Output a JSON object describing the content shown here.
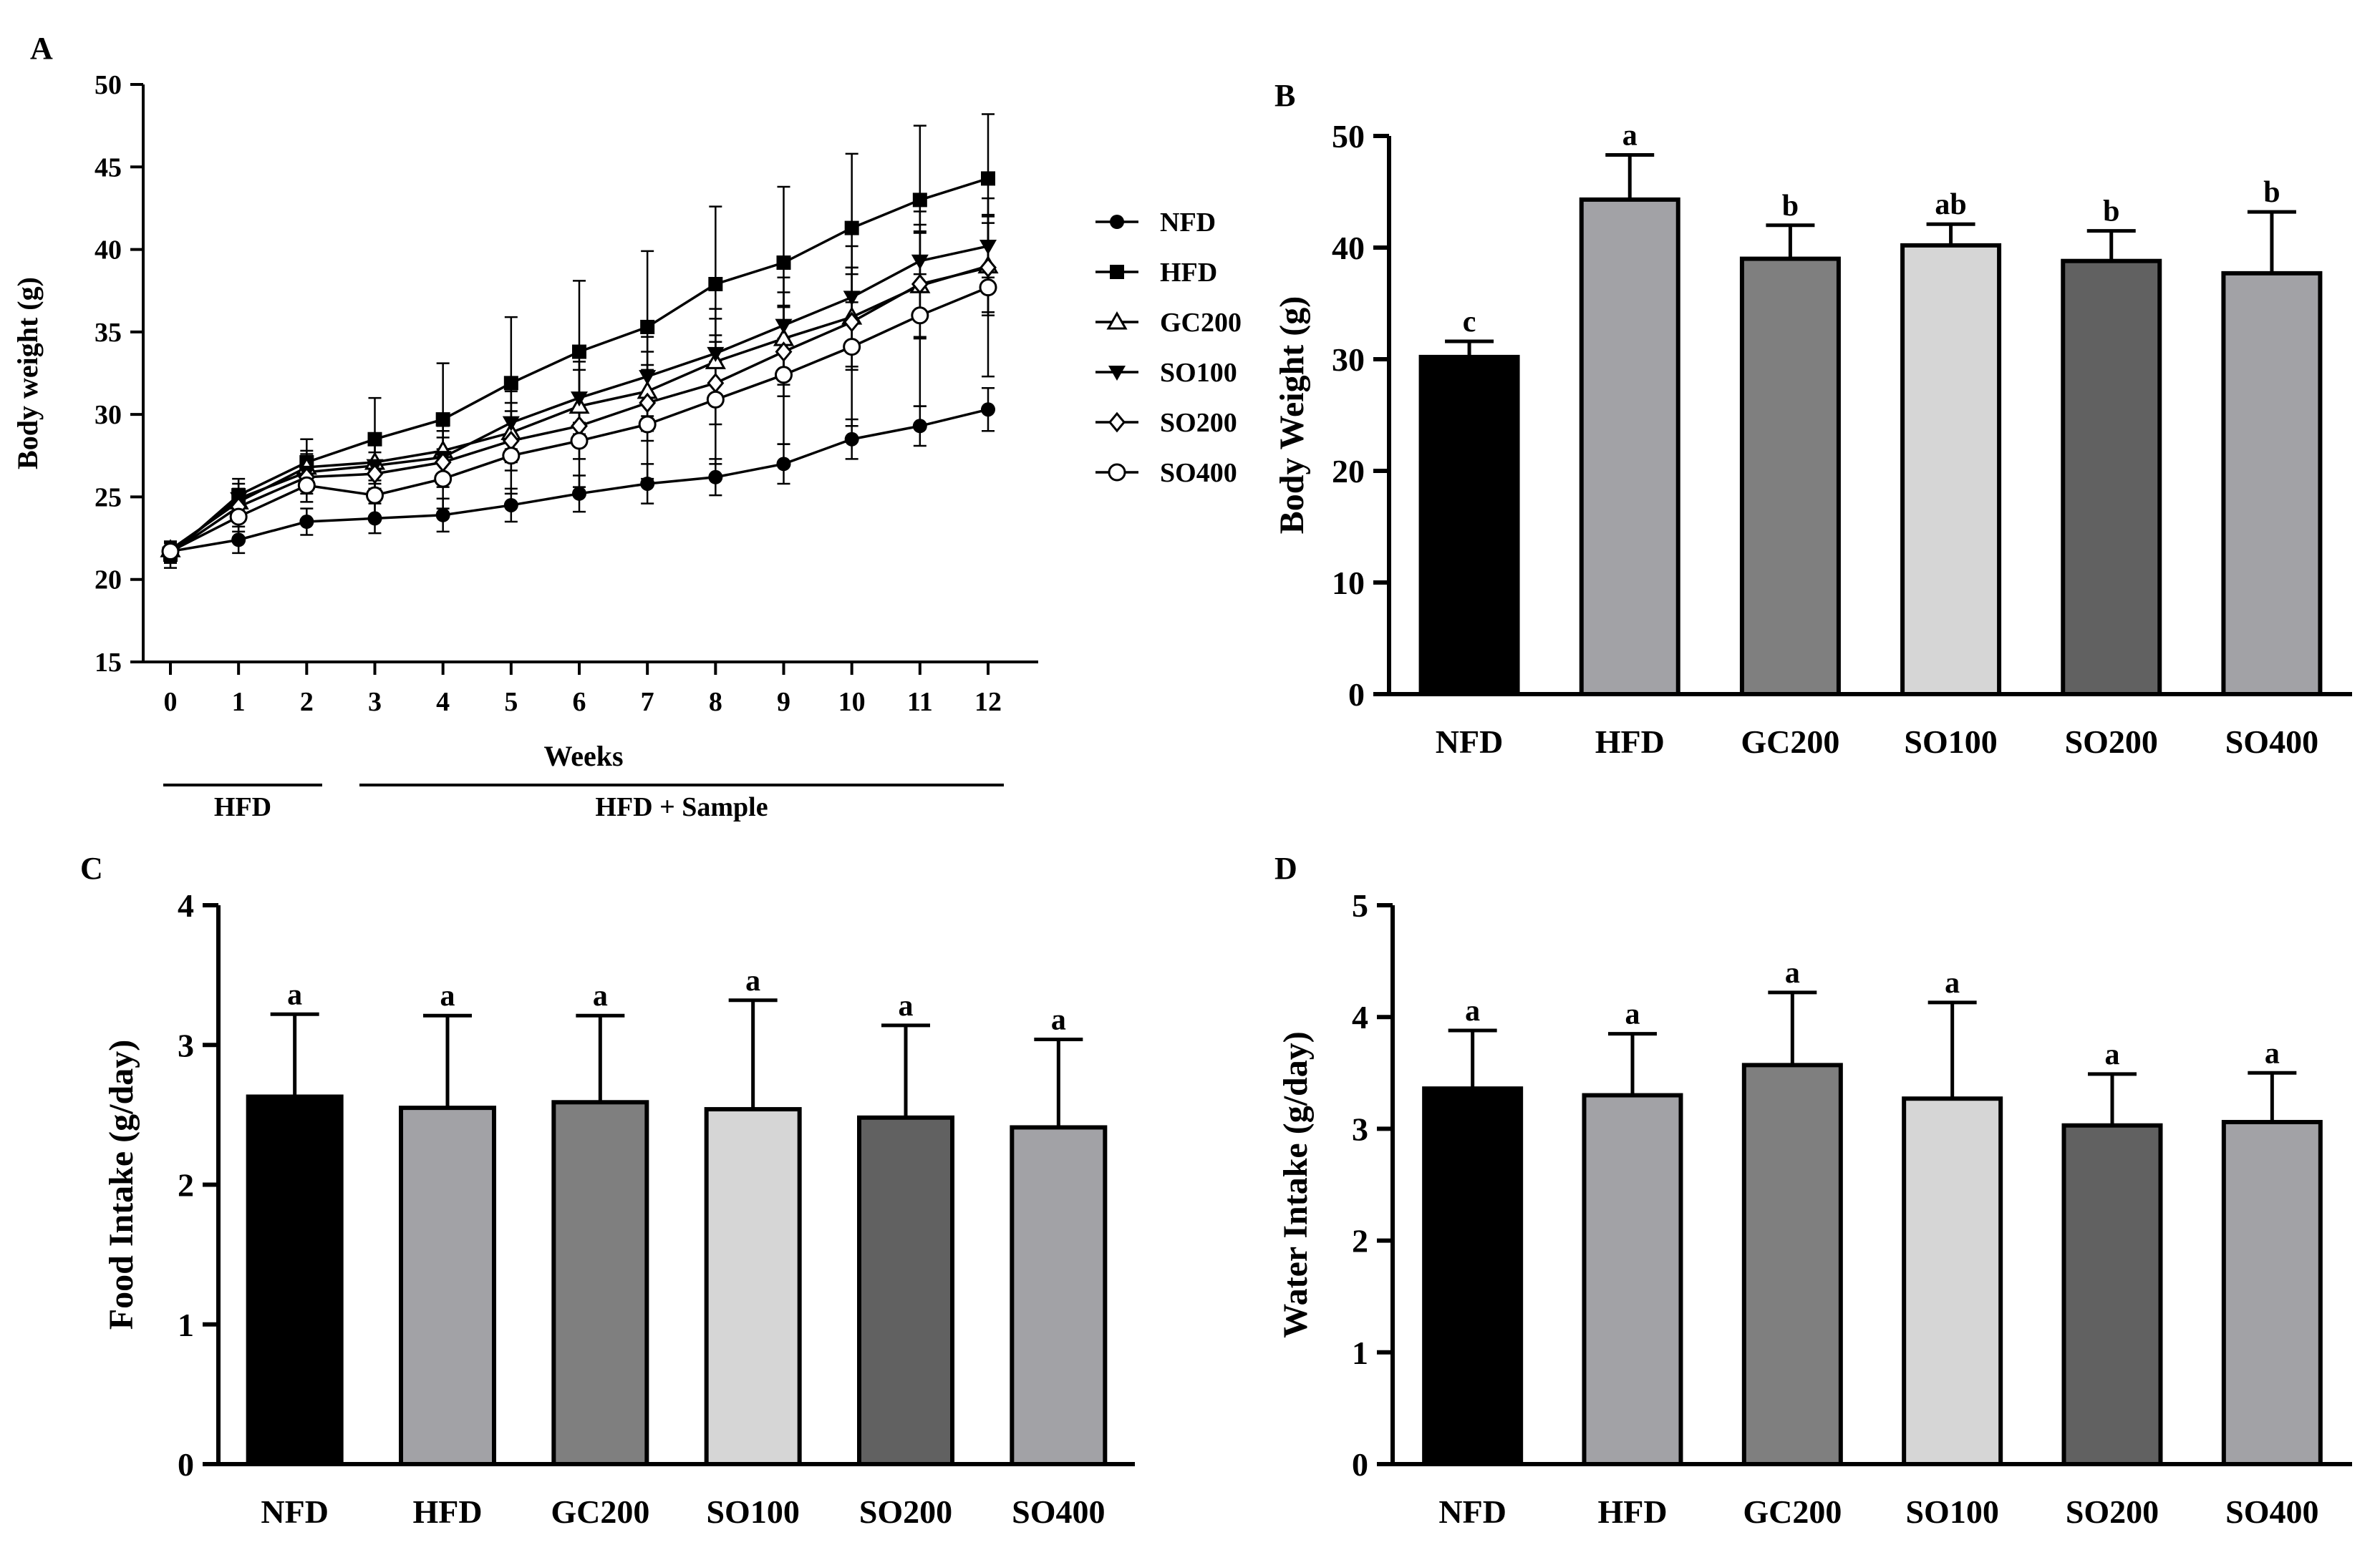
{
  "chart_data": [
    {
      "panel": "A",
      "type": "line",
      "xlabel": "Weeks",
      "ylabel": "Body weight (g)",
      "ylim": [
        15,
        50
      ],
      "yticks": [
        15,
        20,
        25,
        30,
        35,
        40,
        45,
        50
      ],
      "x": [
        0,
        1,
        2,
        3,
        4,
        5,
        6,
        7,
        8,
        9,
        10,
        11,
        12
      ],
      "periods": [
        {
          "label": "HFD",
          "weeks": [
            0,
            2
          ]
        },
        {
          "label": "HFD + Sample",
          "weeks": [
            3,
            12
          ]
        }
      ],
      "series": [
        {
          "name": "NFD",
          "marker": "filled-circle",
          "values": [
            21.7,
            22.4,
            23.5,
            23.7,
            23.9,
            24.5,
            25.2,
            25.8,
            26.2,
            27.0,
            28.5,
            29.3,
            30.3
          ],
          "errors": [
            0.6,
            0.8,
            0.8,
            0.9,
            1.0,
            1.0,
            1.1,
            1.2,
            1.1,
            1.2,
            1.2,
            1.2,
            1.3
          ]
        },
        {
          "name": "HFD",
          "marker": "filled-square",
          "values": [
            21.5,
            25.1,
            27.1,
            28.5,
            29.7,
            31.9,
            33.8,
            35.3,
            37.9,
            39.2,
            41.3,
            43.0,
            44.3
          ],
          "errors": [
            0.8,
            1.0,
            1.4,
            2.5,
            3.4,
            4.0,
            4.3,
            4.6,
            4.7,
            4.6,
            4.5,
            4.5,
            3.9
          ]
        },
        {
          "name": "GC200",
          "marker": "open-triangle",
          "values": [
            21.8,
            24.7,
            26.8,
            27.1,
            27.8,
            28.9,
            30.5,
            31.4,
            33.2,
            34.6,
            35.9,
            37.8,
            39.0
          ],
          "errors": [
            0.5,
            0.8,
            1.0,
            1.3,
            1.5,
            1.8,
            2.2,
            2.4,
            2.6,
            2.8,
            3.0,
            3.2,
            3.0
          ]
        },
        {
          "name": "SO100",
          "marker": "filled-down-triangle",
          "values": [
            21.6,
            24.9,
            26.5,
            26.9,
            27.4,
            29.5,
            31.0,
            32.3,
            33.7,
            35.4,
            37.1,
            39.3,
            40.2
          ],
          "errors": [
            0.6,
            0.9,
            1.1,
            1.4,
            1.6,
            1.9,
            2.2,
            2.4,
            2.7,
            2.9,
            3.1,
            3.0,
            1.9
          ]
        },
        {
          "name": "SO200",
          "marker": "open-diamond",
          "values": [
            21.6,
            24.4,
            26.2,
            26.4,
            27.1,
            28.4,
            29.3,
            30.7,
            31.9,
            33.8,
            35.6,
            37.9,
            38.9
          ],
          "errors": [
            0.6,
            0.8,
            1.0,
            1.3,
            1.5,
            1.8,
            2.0,
            2.3,
            2.5,
            2.7,
            2.9,
            3.2,
            2.7
          ]
        },
        {
          "name": "SO400",
          "marker": "open-circle",
          "values": [
            21.7,
            23.8,
            25.7,
            25.1,
            26.1,
            27.5,
            28.4,
            29.4,
            30.9,
            32.4,
            34.1,
            36.0,
            37.7
          ],
          "errors": [
            0.5,
            0.9,
            1.0,
            1.5,
            1.8,
            2.3,
            2.8,
            3.3,
            3.9,
            4.2,
            4.8,
            5.5,
            5.4
          ]
        }
      ]
    },
    {
      "panel": "B",
      "type": "bar",
      "ylabel": "Body Weight (g)",
      "ylim": [
        0,
        50
      ],
      "yticks": [
        0,
        10,
        20,
        30,
        40,
        50
      ],
      "categories": [
        "NFD",
        "HFD",
        "GC200",
        "SO100",
        "SO200",
        "SO400"
      ],
      "values": [
        30.2,
        44.3,
        39.0,
        40.2,
        38.8,
        37.7
      ],
      "errors": [
        1.4,
        4.0,
        3.0,
        1.9,
        2.7,
        5.5
      ],
      "significance": [
        "c",
        "a",
        "b",
        "ab",
        "b",
        "b"
      ],
      "colors": [
        "#000000",
        "#a2a2a6",
        "#7f7f7f",
        "#d6d6d6",
        "#616161",
        "#a2a2a6"
      ]
    },
    {
      "panel": "C",
      "type": "bar",
      "ylabel": "Food Intake (g/day)",
      "ylim": [
        0,
        4
      ],
      "yticks": [
        0,
        1,
        2,
        3,
        4
      ],
      "categories": [
        "NFD",
        "HFD",
        "GC200",
        "SO100",
        "SO200",
        "SO400"
      ],
      "values": [
        2.63,
        2.55,
        2.59,
        2.54,
        2.48,
        2.41
      ],
      "errors": [
        0.59,
        0.66,
        0.62,
        0.78,
        0.66,
        0.63
      ],
      "significance": [
        "a",
        "a",
        "a",
        "a",
        "a",
        "a"
      ],
      "colors": [
        "#000000",
        "#a2a2a6",
        "#7f7f7f",
        "#d6d6d6",
        "#616161",
        "#a2a2a6"
      ]
    },
    {
      "panel": "D",
      "type": "bar",
      "ylabel": "Water Intake (g/day)",
      "ylim": [
        0,
        5
      ],
      "yticks": [
        0,
        1,
        2,
        3,
        4,
        5
      ],
      "categories": [
        "NFD",
        "HFD",
        "GC200",
        "SO100",
        "SO200",
        "SO400"
      ],
      "values": [
        3.36,
        3.3,
        3.57,
        3.27,
        3.03,
        3.06
      ],
      "errors": [
        0.52,
        0.55,
        0.65,
        0.86,
        0.46,
        0.44
      ],
      "significance": [
        "a",
        "a",
        "a",
        "a",
        "a",
        "a"
      ],
      "colors": [
        "#000000",
        "#a2a2a6",
        "#7f7f7f",
        "#d6d6d6",
        "#616161",
        "#a2a2a6"
      ]
    }
  ]
}
